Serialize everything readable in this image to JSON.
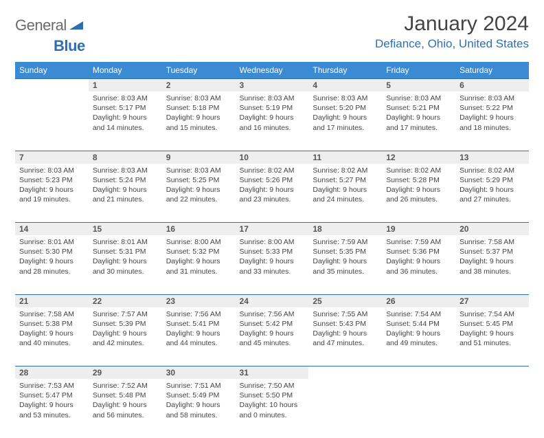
{
  "logo": {
    "text1": "General",
    "text2": "Blue"
  },
  "title": "January 2024",
  "location": "Defiance, Ohio, United States",
  "colors": {
    "header_bg": "#3b8bd4",
    "accent": "#2f6fb0",
    "daynum_bg": "#eeeeee",
    "text": "#444444"
  },
  "weekdays": [
    "Sunday",
    "Monday",
    "Tuesday",
    "Wednesday",
    "Thursday",
    "Friday",
    "Saturday"
  ],
  "weeks": [
    [
      null,
      {
        "n": "1",
        "sunrise": "8:03 AM",
        "sunset": "5:17 PM",
        "daylight": "9 hours and 14 minutes."
      },
      {
        "n": "2",
        "sunrise": "8:03 AM",
        "sunset": "5:18 PM",
        "daylight": "9 hours and 15 minutes."
      },
      {
        "n": "3",
        "sunrise": "8:03 AM",
        "sunset": "5:19 PM",
        "daylight": "9 hours and 16 minutes."
      },
      {
        "n": "4",
        "sunrise": "8:03 AM",
        "sunset": "5:20 PM",
        "daylight": "9 hours and 17 minutes."
      },
      {
        "n": "5",
        "sunrise": "8:03 AM",
        "sunset": "5:21 PM",
        "daylight": "9 hours and 17 minutes."
      },
      {
        "n": "6",
        "sunrise": "8:03 AM",
        "sunset": "5:22 PM",
        "daylight": "9 hours and 18 minutes."
      }
    ],
    [
      {
        "n": "7",
        "sunrise": "8:03 AM",
        "sunset": "5:23 PM",
        "daylight": "9 hours and 19 minutes."
      },
      {
        "n": "8",
        "sunrise": "8:03 AM",
        "sunset": "5:24 PM",
        "daylight": "9 hours and 21 minutes."
      },
      {
        "n": "9",
        "sunrise": "8:03 AM",
        "sunset": "5:25 PM",
        "daylight": "9 hours and 22 minutes."
      },
      {
        "n": "10",
        "sunrise": "8:02 AM",
        "sunset": "5:26 PM",
        "daylight": "9 hours and 23 minutes."
      },
      {
        "n": "11",
        "sunrise": "8:02 AM",
        "sunset": "5:27 PM",
        "daylight": "9 hours and 24 minutes."
      },
      {
        "n": "12",
        "sunrise": "8:02 AM",
        "sunset": "5:28 PM",
        "daylight": "9 hours and 26 minutes."
      },
      {
        "n": "13",
        "sunrise": "8:02 AM",
        "sunset": "5:29 PM",
        "daylight": "9 hours and 27 minutes."
      }
    ],
    [
      {
        "n": "14",
        "sunrise": "8:01 AM",
        "sunset": "5:30 PM",
        "daylight": "9 hours and 28 minutes."
      },
      {
        "n": "15",
        "sunrise": "8:01 AM",
        "sunset": "5:31 PM",
        "daylight": "9 hours and 30 minutes."
      },
      {
        "n": "16",
        "sunrise": "8:00 AM",
        "sunset": "5:32 PM",
        "daylight": "9 hours and 31 minutes."
      },
      {
        "n": "17",
        "sunrise": "8:00 AM",
        "sunset": "5:33 PM",
        "daylight": "9 hours and 33 minutes."
      },
      {
        "n": "18",
        "sunrise": "7:59 AM",
        "sunset": "5:35 PM",
        "daylight": "9 hours and 35 minutes."
      },
      {
        "n": "19",
        "sunrise": "7:59 AM",
        "sunset": "5:36 PM",
        "daylight": "9 hours and 36 minutes."
      },
      {
        "n": "20",
        "sunrise": "7:58 AM",
        "sunset": "5:37 PM",
        "daylight": "9 hours and 38 minutes."
      }
    ],
    [
      {
        "n": "21",
        "sunrise": "7:58 AM",
        "sunset": "5:38 PM",
        "daylight": "9 hours and 40 minutes."
      },
      {
        "n": "22",
        "sunrise": "7:57 AM",
        "sunset": "5:39 PM",
        "daylight": "9 hours and 42 minutes."
      },
      {
        "n": "23",
        "sunrise": "7:56 AM",
        "sunset": "5:41 PM",
        "daylight": "9 hours and 44 minutes."
      },
      {
        "n": "24",
        "sunrise": "7:56 AM",
        "sunset": "5:42 PM",
        "daylight": "9 hours and 45 minutes."
      },
      {
        "n": "25",
        "sunrise": "7:55 AM",
        "sunset": "5:43 PM",
        "daylight": "9 hours and 47 minutes."
      },
      {
        "n": "26",
        "sunrise": "7:54 AM",
        "sunset": "5:44 PM",
        "daylight": "9 hours and 49 minutes."
      },
      {
        "n": "27",
        "sunrise": "7:54 AM",
        "sunset": "5:45 PM",
        "daylight": "9 hours and 51 minutes."
      }
    ],
    [
      {
        "n": "28",
        "sunrise": "7:53 AM",
        "sunset": "5:47 PM",
        "daylight": "9 hours and 53 minutes."
      },
      {
        "n": "29",
        "sunrise": "7:52 AM",
        "sunset": "5:48 PM",
        "daylight": "9 hours and 56 minutes."
      },
      {
        "n": "30",
        "sunrise": "7:51 AM",
        "sunset": "5:49 PM",
        "daylight": "9 hours and 58 minutes."
      },
      {
        "n": "31",
        "sunrise": "7:50 AM",
        "sunset": "5:50 PM",
        "daylight": "10 hours and 0 minutes."
      },
      null,
      null,
      null
    ]
  ],
  "labels": {
    "sunrise": "Sunrise:",
    "sunset": "Sunset:",
    "daylight": "Daylight:"
  }
}
